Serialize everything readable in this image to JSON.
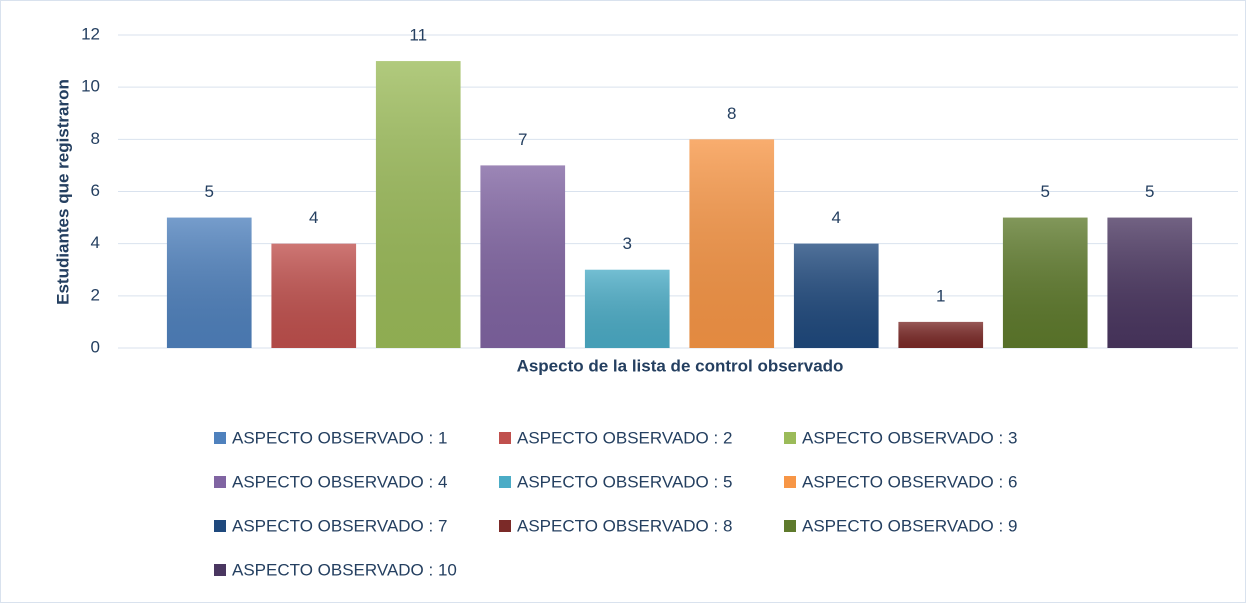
{
  "chart_data": {
    "type": "bar",
    "x_label": "Aspecto  de la  lista  de  control observado",
    "y_label": "Estudiantes  que registraron",
    "categories": [
      null
    ],
    "series": [
      {
        "name": "ASPECTO OBSERVADO : 1",
        "color": "#4f81bd",
        "values": [
          5
        ]
      },
      {
        "name": "ASPECTO OBSERVADO : 2",
        "color": "#c0504d",
        "values": [
          4
        ]
      },
      {
        "name": "ASPECTO OBSERVADO : 3",
        "color": "#9bbb59",
        "values": [
          11
        ]
      },
      {
        "name": "ASPECTO OBSERVADO : 4",
        "color": "#8064a2",
        "values": [
          7
        ]
      },
      {
        "name": "ASPECTO OBSERVADO : 5",
        "color": "#4bacc6",
        "values": [
          3
        ]
      },
      {
        "name": "ASPECTO OBSERVADO : 6",
        "color": "#f79646",
        "values": [
          8
        ]
      },
      {
        "name": "ASPECTO OBSERVADO : 7",
        "color": "#1f497d",
        "values": [
          4
        ]
      },
      {
        "name": "ASPECTO OBSERVADO : 8",
        "color": "#7b2a28",
        "values": [
          1
        ]
      },
      {
        "name": "ASPECTO OBSERVADO : 9",
        "color": "#5e7a2c",
        "values": [
          5
        ]
      },
      {
        "name": "ASPECTO OBSERVADO : 10",
        "color": "#4a3660",
        "values": [
          5
        ]
      }
    ],
    "ylim": [
      0,
      12
    ],
    "yticks": [
      0,
      2,
      4,
      6,
      8,
      10,
      12
    ],
    "grid": true,
    "legend": "bottom"
  }
}
